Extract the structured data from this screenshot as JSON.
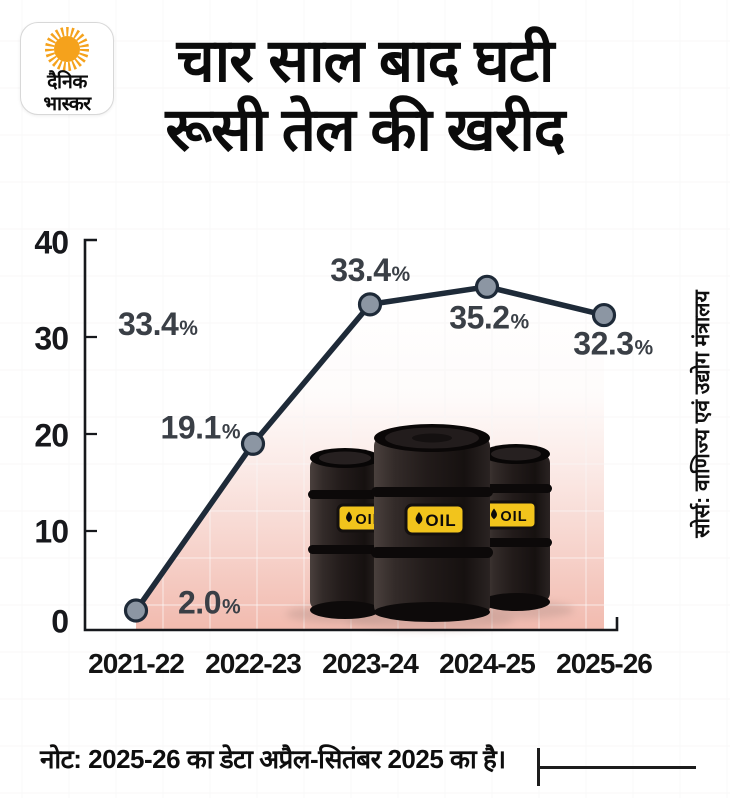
{
  "brand": {
    "logo_line1": "दैनिक",
    "logo_line2": "भास्कर"
  },
  "title": {
    "line1": "चार साल बाद घटी",
    "line2": "रूसी तेल की खरीद"
  },
  "source": "सोर्स: वाणिज्य एवं उद्योग मंत्रालय",
  "footnote": "नोट: 2025-26 का डेटा अप्रैल-सितंबर 2025 का है।",
  "barrel_label": "OIL",
  "colors": {
    "line": "#1e2a38",
    "marker": "#8c96a3",
    "area_pink": "#f0b3a6",
    "axis": "#16181c",
    "label_text": "#3a3f46",
    "logo_orange": "#f5a21c",
    "barrel_yellow": "#f2c41c"
  },
  "chart_data": {
    "type": "line",
    "categories": [
      "2021-22",
      "2022-23",
      "2023-24",
      "2024-25",
      "2025-26"
    ],
    "values": [
      2.0,
      19.1,
      33.4,
      35.2,
      32.3
    ],
    "unit": "%",
    "point_labels": [
      "2.0%",
      "19.1%",
      "33.4%",
      "35.2%",
      "32.3%"
    ],
    "point_labels_value": [
      "2.0",
      "19.1",
      "33.4",
      "35.2",
      "32.3"
    ],
    "percent_sign": "%",
    "stray_label_value": "33.4",
    "y_ticks": [
      0,
      10,
      20,
      30,
      40
    ],
    "y_tick_labels": [
      "40",
      "30",
      "20",
      "10",
      "0"
    ],
    "ylim": [
      0,
      40
    ],
    "xlabel": "",
    "ylabel": "",
    "grid": true,
    "legend": "none",
    "area_fill": "pink gradient under line, fading upward"
  }
}
